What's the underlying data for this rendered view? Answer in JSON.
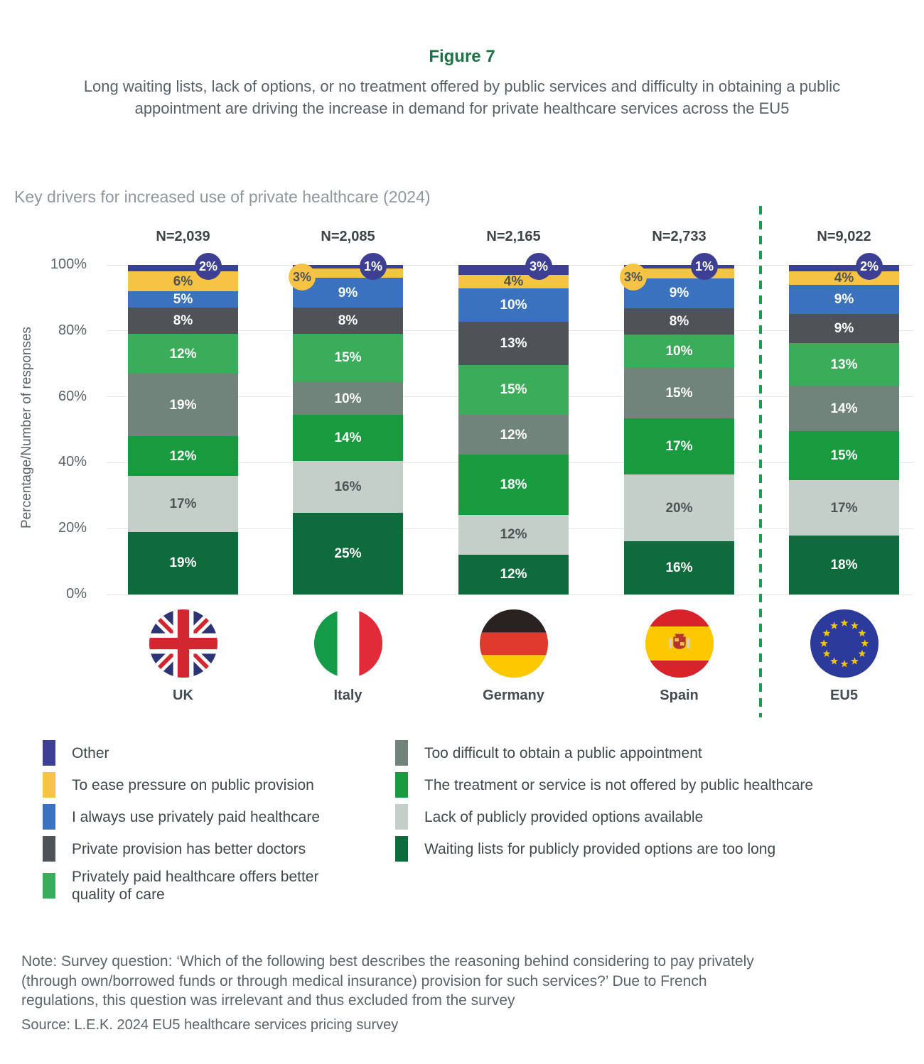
{
  "figure": {
    "label": "Figure 7",
    "subtitle": "Long waiting lists, lack of options, or no treatment offered by public services and difficulty in obtaining a public appointment are driving the increase in demand for private healthcare services across the EU5"
  },
  "chart_data": {
    "type": "bar",
    "stacked": true,
    "title": "Key drivers for increased use of private healthcare (2024)",
    "ylabel": "Percentage/Number of responses",
    "yticks": [
      "0%",
      "20%",
      "40%",
      "60%",
      "80%",
      "100%"
    ],
    "ylim": [
      0,
      100
    ],
    "grid": true,
    "categories": [
      "UK",
      "Italy",
      "Germany",
      "Spain",
      "EU5"
    ],
    "sample_sizes": [
      "N=2,039",
      "N=2,085",
      "N=2,165",
      "N=2,733",
      "N=9,022"
    ],
    "flags": [
      "uk",
      "italy",
      "germany",
      "spain",
      "eu"
    ],
    "series": [
      {
        "name": "Waiting lists for publicly provided options are too long",
        "color": "#0e6b3c",
        "text_color": "#ffffff",
        "values": [
          19,
          25,
          12,
          16,
          18
        ],
        "label_shown": [
          true,
          true,
          true,
          true,
          true
        ]
      },
      {
        "name": "Lack of publicly provided options available",
        "color": "#c5cfc9",
        "text_color": "#4d5357",
        "values": [
          17,
          16,
          12,
          20,
          17
        ],
        "label_shown": [
          true,
          true,
          true,
          true,
          true
        ]
      },
      {
        "name": "The treatment or service is not offered by public healthcare",
        "color": "#189a3e",
        "text_color": "#ffffff",
        "values": [
          12,
          14,
          18,
          17,
          15
        ],
        "label_shown": [
          true,
          true,
          true,
          true,
          true
        ]
      },
      {
        "name": "Too difficult to obtain a public appointment",
        "color": "#70847b",
        "text_color": "#ffffff",
        "values": [
          19,
          10,
          12,
          15,
          14
        ],
        "label_shown": [
          true,
          true,
          true,
          true,
          true
        ]
      },
      {
        "name": "Privately paid healthcare offers better quality of care",
        "color": "#3bac59",
        "text_color": "#ffffff",
        "values": [
          12,
          15,
          15,
          10,
          13
        ],
        "label_shown": [
          true,
          true,
          true,
          true,
          true
        ]
      },
      {
        "name": "Private provision has better doctors",
        "color": "#4d5357",
        "text_color": "#ffffff",
        "values": [
          8,
          8,
          13,
          8,
          9
        ],
        "label_shown": [
          true,
          true,
          true,
          true,
          true
        ]
      },
      {
        "name": "I always use privately paid healthcare",
        "color": "#3b72bd",
        "text_color": "#ffffff",
        "values": [
          5,
          9,
          10,
          9,
          9
        ],
        "label_shown": [
          true,
          true,
          true,
          true,
          true
        ]
      },
      {
        "name": "To ease pressure on public provision",
        "color": "#f6c344",
        "text_color": "#4d5357",
        "values": [
          6,
          3,
          4,
          3,
          4
        ],
        "label_shown": [
          true,
          false,
          true,
          false,
          true
        ]
      },
      {
        "name": "Other",
        "color": "#3c3f92",
        "text_color": "#ffffff",
        "values": [
          2,
          1,
          3,
          1,
          2
        ],
        "label_shown": [
          false,
          false,
          false,
          false,
          false
        ]
      }
    ],
    "badges": [
      [
        {
          "side": "right",
          "style": "purple",
          "text": "2%"
        }
      ],
      [
        {
          "side": "left",
          "style": "yellow",
          "text": "3%"
        },
        {
          "side": "right",
          "style": "purple",
          "text": "1%"
        }
      ],
      [
        {
          "side": "right",
          "style": "purple",
          "text": "3%"
        }
      ],
      [
        {
          "side": "left",
          "style": "yellow",
          "text": "3%"
        },
        {
          "side": "right",
          "style": "purple",
          "text": "1%"
        }
      ],
      [
        {
          "side": "right",
          "style": "purple",
          "text": "2%"
        }
      ]
    ],
    "badge_styles": {
      "purple": {
        "bg": "#3c3f92",
        "fg": "#ffffff"
      },
      "yellow": {
        "bg": "#f6c344",
        "fg": "#4d5357"
      }
    },
    "separator": {
      "between": [
        "Spain",
        "EU5"
      ],
      "color": "#1aa04b"
    }
  },
  "legend": {
    "columns": [
      [
        {
          "label": "Other",
          "color": "#3c3f92"
        },
        {
          "label": "To ease pressure on public provision",
          "color": "#f6c344"
        },
        {
          "label": "I always use privately paid healthcare",
          "color": "#3b72bd"
        },
        {
          "label": "Private provision has better doctors",
          "color": "#4d5357"
        },
        {
          "label": "Privately paid healthcare offers better quality of care",
          "color": "#3bac59"
        }
      ],
      [
        {
          "label": "Too difficult to obtain a public appointment",
          "color": "#70847b"
        },
        {
          "label": "The treatment or service is not offered by public healthcare",
          "color": "#189a3e"
        },
        {
          "label": "Lack of publicly provided options available",
          "color": "#c5cfc9"
        },
        {
          "label": "Waiting lists for publicly provided options are too long",
          "color": "#0e6b3c"
        }
      ]
    ]
  },
  "note": "Note: Survey question: ‘Which of the following best describes the reasoning behind considering to pay privately (through own/borrowed funds or through medical insurance) provision for such services?’ Due to French regulations, this question was irrelevant and thus excluded from the survey",
  "source": "Source: L.E.K. 2024 EU5 healthcare services pricing survey"
}
